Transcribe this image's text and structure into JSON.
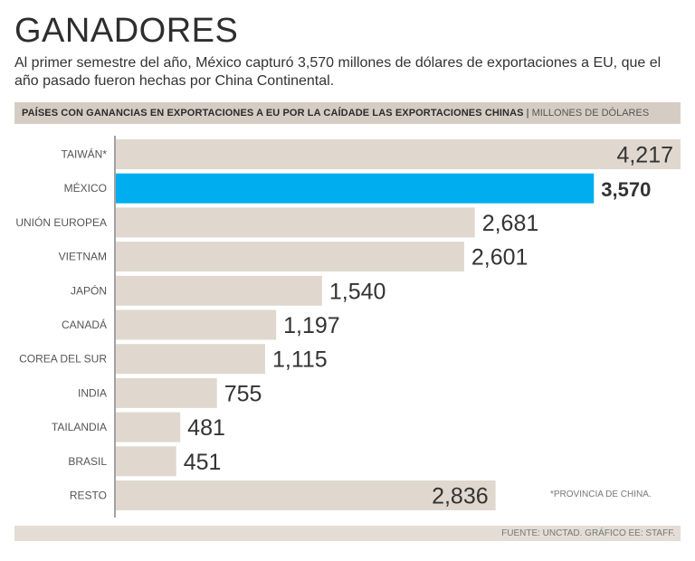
{
  "header": {
    "title": "GANADORES",
    "subtitle": "Al primer semestre del año, México capturó 3,570 millones de dólares de exportaciones a EU, que el año pasado fueron hechas por China Continental."
  },
  "band": {
    "heading": "PAÍSES CON GANANCIAS EN EXPORTACIONES A EU POR LA CAÍDADE LAS EXPORTACIONES CHINAS",
    "separator": "|",
    "units": "MILLONES DE DÓLARES"
  },
  "note": "*PROVINCIA DE CHINA.",
  "footer": "FUENTE: UNCTAD. GRÁFICO EE: STAFF.",
  "colors": {
    "bar": "#e0d8cf",
    "highlight": "#00aeef",
    "axis": "#444444",
    "label": "#555555",
    "value": "#333333"
  },
  "chart_data": {
    "type": "bar",
    "orientation": "horizontal",
    "title": "PAÍSES CON GANANCIAS EN EXPORTACIONES A EU POR LA CAÍDADE LAS EXPORTACIONES CHINAS",
    "xlabel": "MILLONES DE DÓLARES",
    "ylabel": "",
    "xlim": [
      0,
      4217
    ],
    "categories": [
      "TAIWÁN*",
      "MÉXICO",
      "UNIÓN EUROPEA",
      "VIETNAM",
      "JAPÓN",
      "CANADÁ",
      "COREA DEL SUR",
      "INDIA",
      "TAILANDIA",
      "BRASIL",
      "RESTO"
    ],
    "values": [
      4217,
      3570,
      2681,
      2601,
      1540,
      1197,
      1115,
      755,
      481,
      451,
      2836
    ],
    "value_labels": [
      "4,217",
      "3,570",
      "2,681",
      "2,601",
      "1,540",
      "1,197",
      "1,115",
      "755",
      "481",
      "451",
      "2,836"
    ],
    "highlight": "MÉXICO"
  }
}
